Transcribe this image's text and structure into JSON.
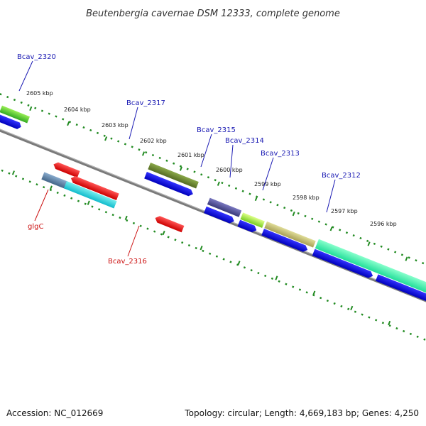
{
  "title": "Beutenbergia cavernae DSM 12333, complete genome",
  "footer": {
    "accession": "Accession: NC_012669",
    "topology": "Topology: circular; Length: 4,669,183 bp; Genes: 4,250"
  },
  "kbp_labels": [
    "2605 kbp",
    "2604 kbp",
    "2603 kbp",
    "2602 kbp",
    "2601 kbp",
    "2600 kbp",
    "2599 kbp",
    "2598 kbp",
    "2597 kbp",
    "2596 kbp"
  ],
  "gene_labels": {
    "bcav_2320": "Bcav_2320",
    "bcav_2317": "Bcav_2317",
    "bcav_2315": "Bcav_2315",
    "bcav_2314": "Bcav_2314",
    "bcav_2313": "Bcav_2313",
    "bcav_2312": "Bcav_2312",
    "glgc": "glgC",
    "bcav_2316": "Bcav_2316"
  },
  "colors": {
    "backbone": "#777777",
    "tick_green": "#228b22",
    "label_blue": "#1a1ab3",
    "label_red": "#cc1111",
    "gene_blue": "#1010ee",
    "gene_red": "#ee1111"
  }
}
